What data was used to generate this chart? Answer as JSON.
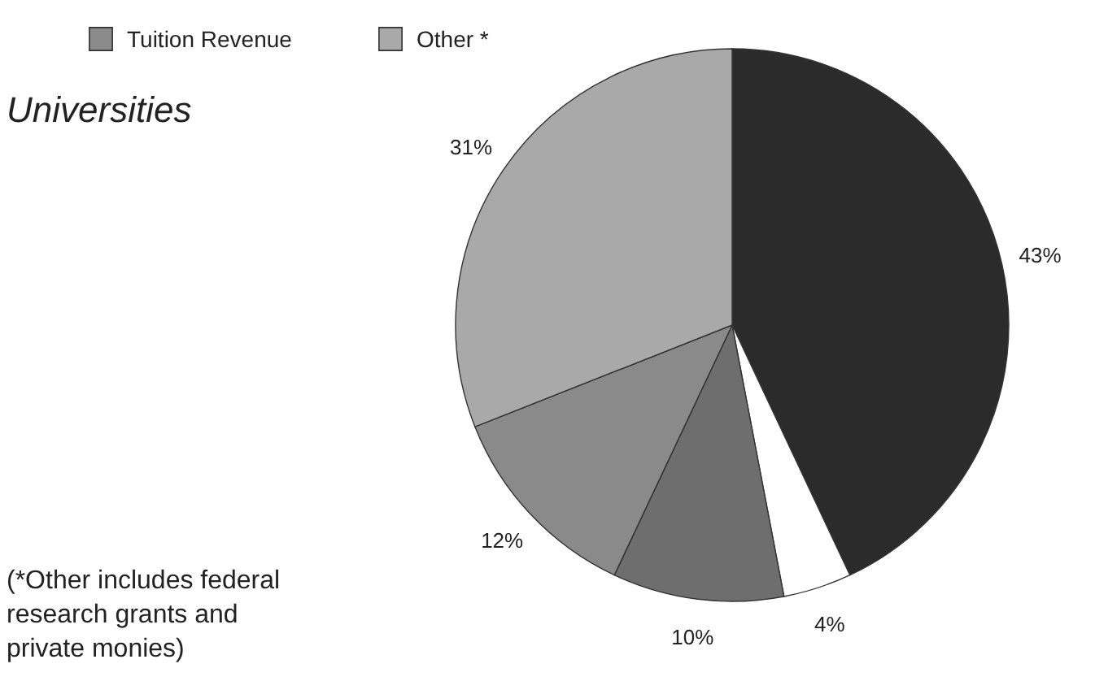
{
  "chart_data": {
    "type": "pie",
    "title": "Universities",
    "categories": [
      null,
      null,
      null,
      "Tuition Revenue",
      "Other *"
    ],
    "values": [
      43,
      4,
      10,
      12,
      31
    ],
    "colors": [
      "#2b2b2b",
      "#ffffff",
      "#6e6e6e",
      "#8a8a8a",
      "#a9a9a9"
    ],
    "value_labels": [
      "43%",
      "4%",
      "10%",
      "12%",
      "31%"
    ],
    "legend": "top left",
    "annotations": [
      "(*Other includes federal research grants and private monies)"
    ]
  }
}
